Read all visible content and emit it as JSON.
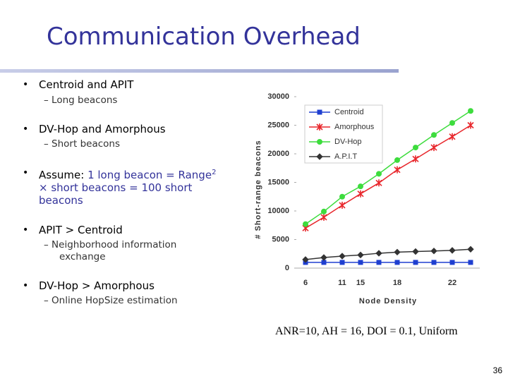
{
  "title": "Communication Overhead",
  "bullets": [
    {
      "text": "Centroid and APIT",
      "sub": "Long beacons"
    },
    {
      "text": "DV-Hop and Amorphous",
      "sub": "Short beacons"
    },
    {
      "lead": "Assume:",
      "text": "1 long beacon = Range",
      "sup": "2",
      "rest": "× short beacons = 100 short beacons"
    },
    {
      "text": "APIT >  Centroid",
      "sub": "Neighborhood information exchange"
    },
    {
      "text": "DV-Hop > Amorphous",
      "sub": "Online HopSize estimation"
    }
  ],
  "caption": "ANR=10, AH = 16, DOI = 0.1, Uniform",
  "page_number": "36",
  "chart_data": {
    "type": "line",
    "xlabel": "Node Density",
    "ylabel": "# Short-range beacons",
    "categories": [
      "6",
      null,
      "11",
      "15",
      null,
      "18",
      null,
      null,
      "22",
      null
    ],
    "ylim": [
      0,
      30000
    ],
    "yticks": [
      0,
      5000,
      10000,
      15000,
      20000,
      25000,
      30000
    ],
    "legend": "upper left",
    "series": [
      {
        "name": "Centroid",
        "color": "#1f3fd0",
        "marker": "square",
        "values": [
          1000,
          1000,
          1000,
          1000,
          1000,
          1000,
          1000,
          1000,
          1000,
          1000
        ]
      },
      {
        "name": "Amorphous",
        "color": "#e8262b",
        "marker": "star",
        "values": [
          7000,
          8900,
          11000,
          13000,
          14900,
          17200,
          19100,
          21100,
          23000,
          25000
        ]
      },
      {
        "name": "DV-Hop",
        "color": "#3ddc3d",
        "marker": "circle",
        "values": [
          7700,
          9900,
          12500,
          14300,
          16500,
          18900,
          21100,
          23300,
          25400,
          27500
        ]
      },
      {
        "name": "A.P.I.T",
        "color": "#333333",
        "marker": "diamond",
        "values": [
          1500,
          1850,
          2100,
          2300,
          2600,
          2800,
          2900,
          3000,
          3100,
          3300
        ]
      }
    ]
  }
}
